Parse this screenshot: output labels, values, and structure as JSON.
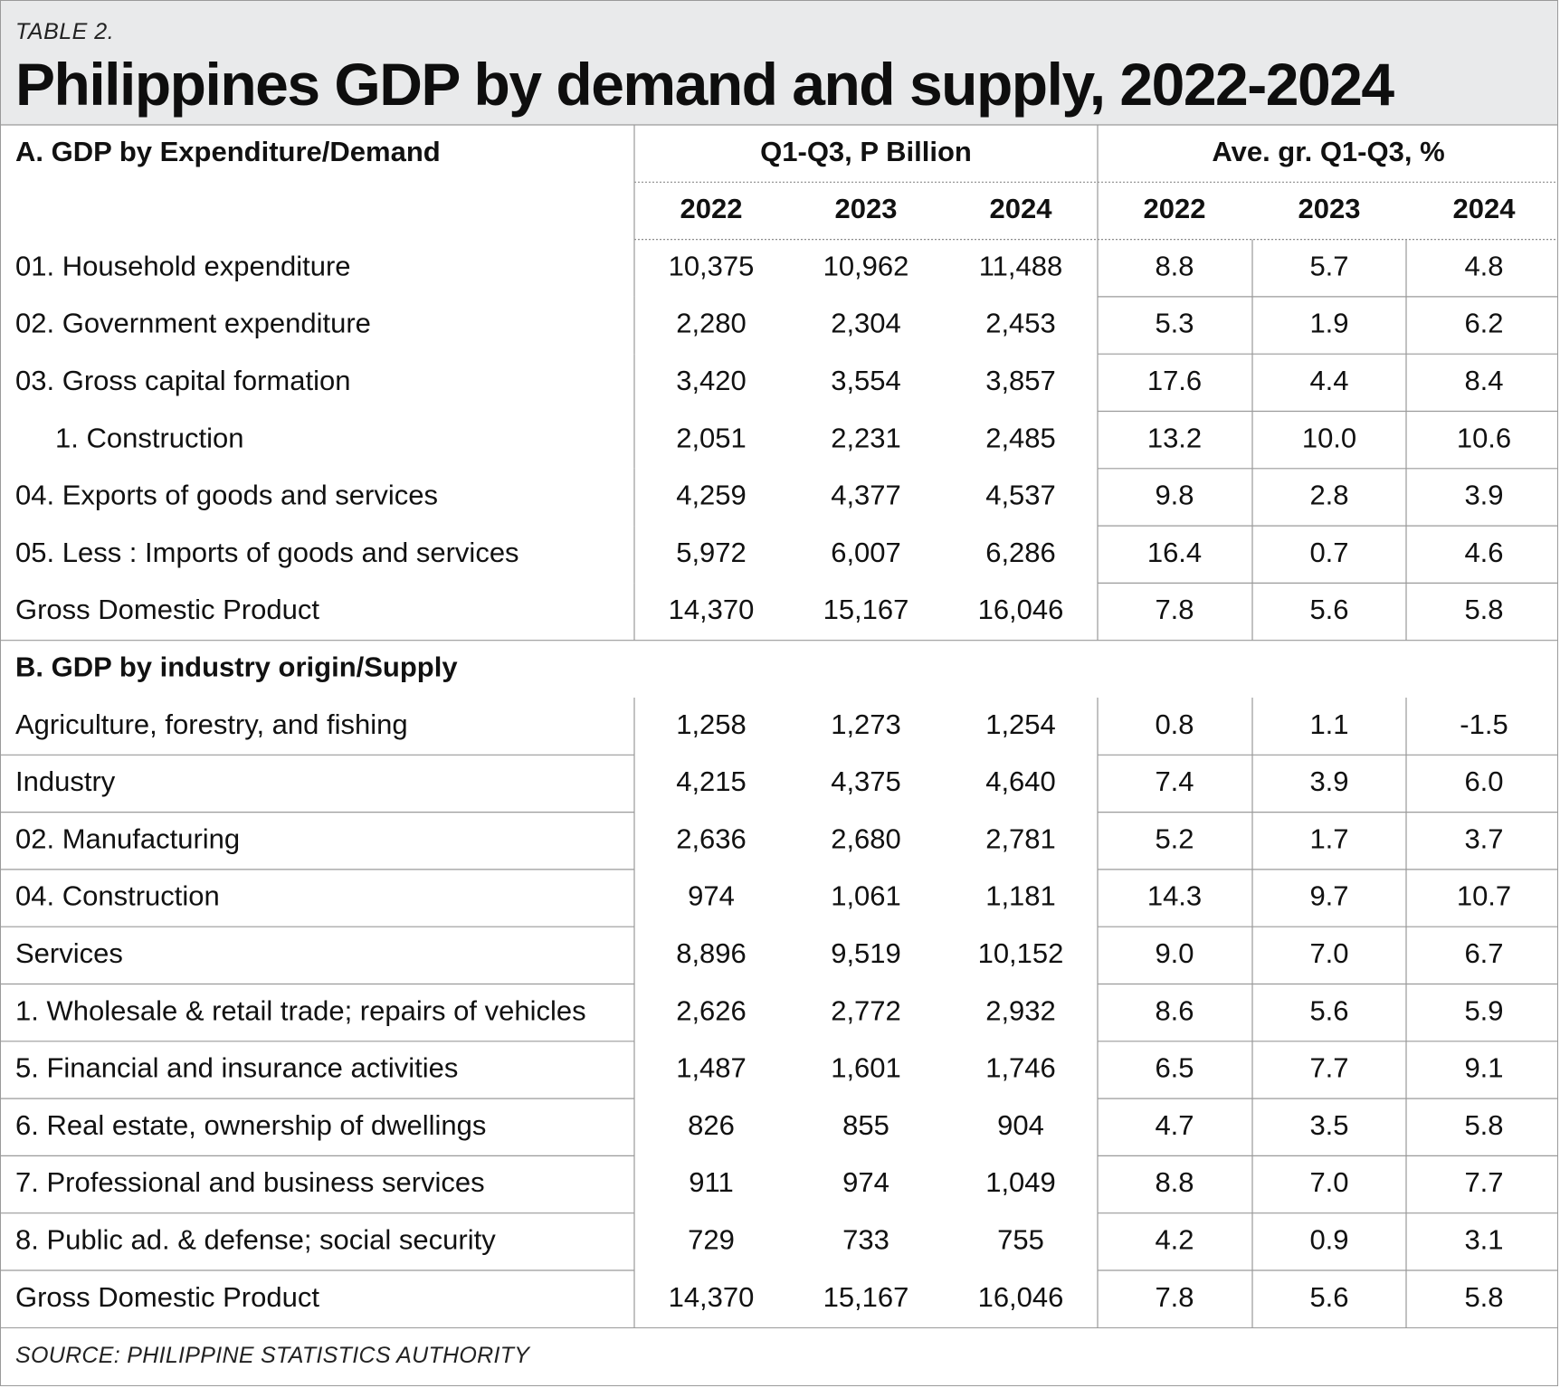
{
  "header": {
    "eyebrow": "TABLE 2.",
    "title": "Philippines GDP by demand and supply, 2022-2024"
  },
  "column_groups": {
    "level_label": "Q1-Q3, P Billion",
    "growth_label": "Ave. gr. Q1-Q3, %"
  },
  "years": [
    "2022",
    "2023",
    "2024",
    "2022",
    "2023",
    "2024"
  ],
  "section_a": {
    "label": "A. GDP by Expenditure/Demand",
    "rows": [
      {
        "label": "01. Household expenditure",
        "indent": false,
        "values": [
          "10,375",
          "10,962",
          "11,488",
          "8.8",
          "5.7",
          "4.8"
        ]
      },
      {
        "label": "02. Government expenditure",
        "indent": false,
        "values": [
          "2,280",
          "2,304",
          "2,453",
          "5.3",
          "1.9",
          "6.2"
        ]
      },
      {
        "label": "03. Gross capital formation",
        "indent": false,
        "values": [
          "3,420",
          "3,554",
          "3,857",
          "17.6",
          "4.4",
          "8.4"
        ]
      },
      {
        "label": "1. Construction",
        "indent": true,
        "values": [
          "2,051",
          "2,231",
          "2,485",
          "13.2",
          "10.0",
          "10.6"
        ]
      },
      {
        "label": "04. Exports of goods and services",
        "indent": false,
        "values": [
          "4,259",
          "4,377",
          "4,537",
          "9.8",
          "2.8",
          "3.9"
        ]
      },
      {
        "label": "05. Less : Imports of goods and services",
        "indent": false,
        "values": [
          "5,972",
          "6,007",
          "6,286",
          "16.4",
          "0.7",
          "4.6"
        ]
      },
      {
        "label": "Gross Domestic Product",
        "indent": false,
        "values": [
          "14,370",
          "15,167",
          "16,046",
          "7.8",
          "5.6",
          "5.8"
        ]
      }
    ]
  },
  "section_b": {
    "label": "B. GDP by industry origin/Supply",
    "rows": [
      {
        "label": "Agriculture, forestry, and fishing",
        "indent": false,
        "values": [
          "1,258",
          "1,273",
          "1,254",
          "0.8",
          "1.1",
          "-1.5"
        ]
      },
      {
        "label": "Industry",
        "indent": false,
        "values": [
          "4,215",
          "4,375",
          "4,640",
          "7.4",
          "3.9",
          "6.0"
        ]
      },
      {
        "label": "02. Manufacturing",
        "indent": false,
        "values": [
          "2,636",
          "2,680",
          "2,781",
          "5.2",
          "1.7",
          "3.7"
        ]
      },
      {
        "label": "04. Construction",
        "indent": false,
        "values": [
          "974",
          "1,061",
          "1,181",
          "14.3",
          "9.7",
          "10.7"
        ]
      },
      {
        "label": "Services",
        "indent": false,
        "values": [
          "8,896",
          "9,519",
          "10,152",
          "9.0",
          "7.0",
          "6.7"
        ]
      },
      {
        "label": "1. Wholesale & retail trade; repairs   of vehicles",
        "indent": false,
        "values": [
          "2,626",
          "2,772",
          "2,932",
          "8.6",
          "5.6",
          "5.9"
        ]
      },
      {
        "label": "5. Financial and insurance activities",
        "indent": false,
        "values": [
          "1,487",
          "1,601",
          "1,746",
          "6.5",
          "7.7",
          "9.1"
        ]
      },
      {
        "label": "6. Real estate, ownership of dwellings",
        "indent": false,
        "values": [
          "826",
          "855",
          "904",
          "4.7",
          "3.5",
          "5.8"
        ]
      },
      {
        "label": "7. Professional and business services",
        "indent": false,
        "values": [
          "911",
          "974",
          "1,049",
          "8.8",
          "7.0",
          "7.7"
        ]
      },
      {
        "label": "8. Public ad. & defense; social security",
        "indent": false,
        "values": [
          "729",
          "733",
          "755",
          "4.2",
          "0.9",
          "3.1"
        ]
      },
      {
        "label": "Gross Domestic Product",
        "indent": false,
        "values": [
          "14,370",
          "15,167",
          "16,046",
          "7.8",
          "5.6",
          "5.8"
        ]
      }
    ]
  },
  "footer": {
    "source": "SOURCE: PHILIPPINE STATISTICS AUTHORITY"
  }
}
